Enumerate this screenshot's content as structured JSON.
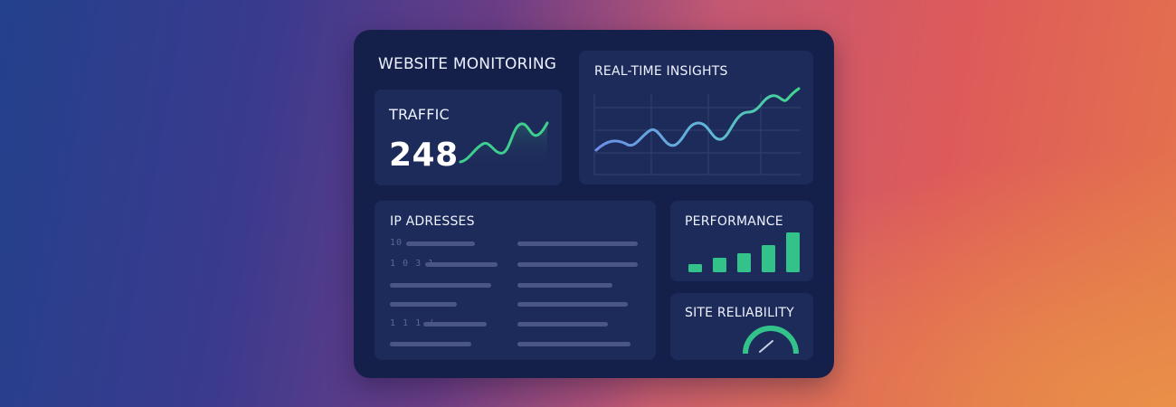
{
  "dashboard": {
    "title": "WEBSITE MONITORING",
    "traffic": {
      "title": "TRAFFIC",
      "value": "248",
      "accent": "#3ecf8e"
    },
    "insights": {
      "title": "REAL-TIME INSIGHTS",
      "line_gradient": [
        "#6a8fe6",
        "#3ed88a"
      ]
    },
    "ip": {
      "title": "IP ADRESSES",
      "left_rows": [
        {
          "prefix": "10"
        },
        {
          "prefix": "1 0 3 1"
        },
        {
          "prefix": ""
        },
        {
          "prefix": ""
        },
        {
          "prefix": "1 1 1 /"
        },
        {
          "prefix": ""
        }
      ],
      "right_rows": 6
    },
    "performance": {
      "title": "PERFORMANCE",
      "bar_levels": [
        0.2,
        0.37,
        0.48,
        0.68,
        1.0
      ],
      "bar_color": "#33c28a"
    },
    "reliability": {
      "title": "SITE RELIABILITY",
      "gauge_color": "#33c28a",
      "needle_color": "#c9cfe4"
    }
  }
}
